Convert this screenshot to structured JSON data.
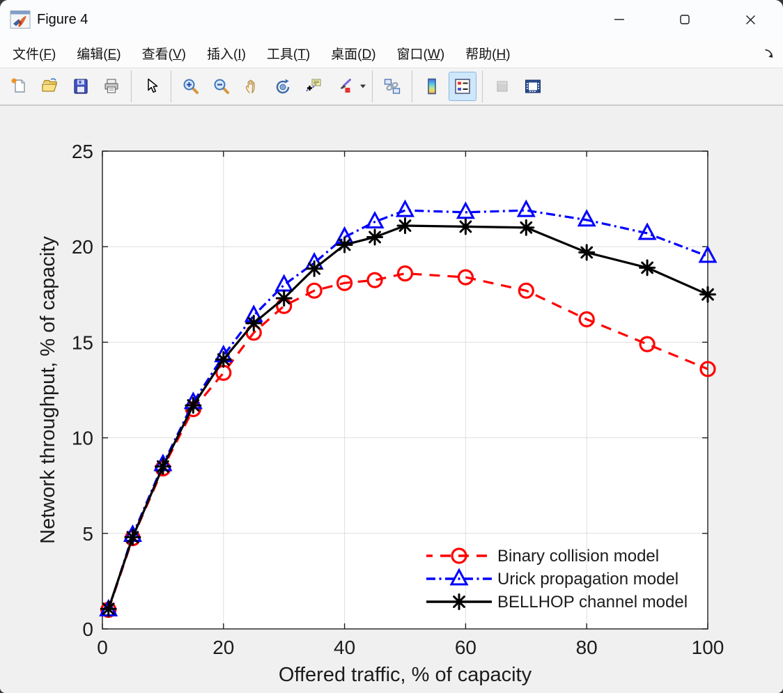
{
  "window": {
    "title": "Figure 4",
    "icon": "matlab-figure-icon",
    "controls": [
      {
        "name": "minimize"
      },
      {
        "name": "maximize"
      },
      {
        "name": "close"
      }
    ]
  },
  "menubar": {
    "items": [
      {
        "name": "file",
        "label": "文件",
        "key": "F"
      },
      {
        "name": "edit",
        "label": "编辑",
        "key": "E"
      },
      {
        "name": "view",
        "label": "查看",
        "key": "V"
      },
      {
        "name": "insert",
        "label": "插入",
        "key": "I"
      },
      {
        "name": "tools",
        "label": "工具",
        "key": "T"
      },
      {
        "name": "desktop",
        "label": "桌面",
        "key": "D"
      },
      {
        "name": "window",
        "label": "窗口",
        "key": "W"
      },
      {
        "name": "help",
        "label": "帮助",
        "key": "H"
      }
    ],
    "dock_icon": "dock-arrow"
  },
  "toolbar": {
    "items": [
      {
        "type": "button",
        "icon": "new-figure"
      },
      {
        "type": "button",
        "icon": "open-file"
      },
      {
        "type": "button",
        "icon": "save-figure"
      },
      {
        "type": "button",
        "icon": "print-figure"
      },
      {
        "type": "separator"
      },
      {
        "type": "button",
        "icon": "edit-plot"
      },
      {
        "type": "separator"
      },
      {
        "type": "button",
        "icon": "zoom-in"
      },
      {
        "type": "button",
        "icon": "zoom-out"
      },
      {
        "type": "button",
        "icon": "pan"
      },
      {
        "type": "button",
        "icon": "rotate-3d"
      },
      {
        "type": "button",
        "icon": "data-cursor"
      },
      {
        "type": "button",
        "icon": "brush-data",
        "dropdown": true
      },
      {
        "type": "separator"
      },
      {
        "type": "button",
        "icon": "link-plot"
      },
      {
        "type": "separator"
      },
      {
        "type": "button",
        "icon": "insert-colorbar"
      },
      {
        "type": "button",
        "icon": "insert-legend",
        "active": true
      },
      {
        "type": "separator"
      },
      {
        "type": "button",
        "icon": "hide-plot-tools",
        "disabled": true
      },
      {
        "type": "button",
        "icon": "show-plot-tools"
      }
    ]
  },
  "chart_data": {
    "type": "line",
    "title": "",
    "xlabel": "Offered traffic, % of capacity",
    "ylabel": "Network throughput, % of capacity",
    "xlim": [
      0,
      100
    ],
    "ylim": [
      0,
      25
    ],
    "xticks": [
      0,
      20,
      40,
      60,
      80,
      100
    ],
    "yticks": [
      0,
      5,
      10,
      15,
      20,
      25
    ],
    "grid": true,
    "legend_position": "inside-bottom-right",
    "legend_box": false,
    "x": [
      1,
      5,
      10,
      15,
      20,
      25,
      30,
      35,
      40,
      45,
      50,
      60,
      70,
      80,
      90,
      100
    ],
    "series": [
      {
        "name": "Binary collision model",
        "color": "#ff0000",
        "linestyle": "dashed",
        "marker": "circle",
        "values": [
          1.0,
          4.75,
          8.4,
          11.5,
          13.4,
          15.5,
          16.9,
          17.7,
          18.1,
          18.25,
          18.6,
          18.4,
          17.7,
          16.2,
          14.9,
          13.6
        ]
      },
      {
        "name": "Urick propagation model",
        "color": "#0000ff",
        "linestyle": "dashdot",
        "marker": "triangle",
        "values": [
          1.0,
          4.9,
          8.6,
          11.85,
          14.3,
          16.4,
          18.0,
          19.15,
          20.5,
          21.3,
          21.9,
          21.8,
          21.9,
          21.4,
          20.7,
          19.5
        ]
      },
      {
        "name": "BELLHOP channel model",
        "color": "#000000",
        "linestyle": "solid",
        "marker": "asterisk",
        "values": [
          1.05,
          4.8,
          8.5,
          11.7,
          14.1,
          16.0,
          17.3,
          18.85,
          20.1,
          20.5,
          21.1,
          21.05,
          21.0,
          19.7,
          18.9,
          17.5
        ]
      }
    ]
  }
}
